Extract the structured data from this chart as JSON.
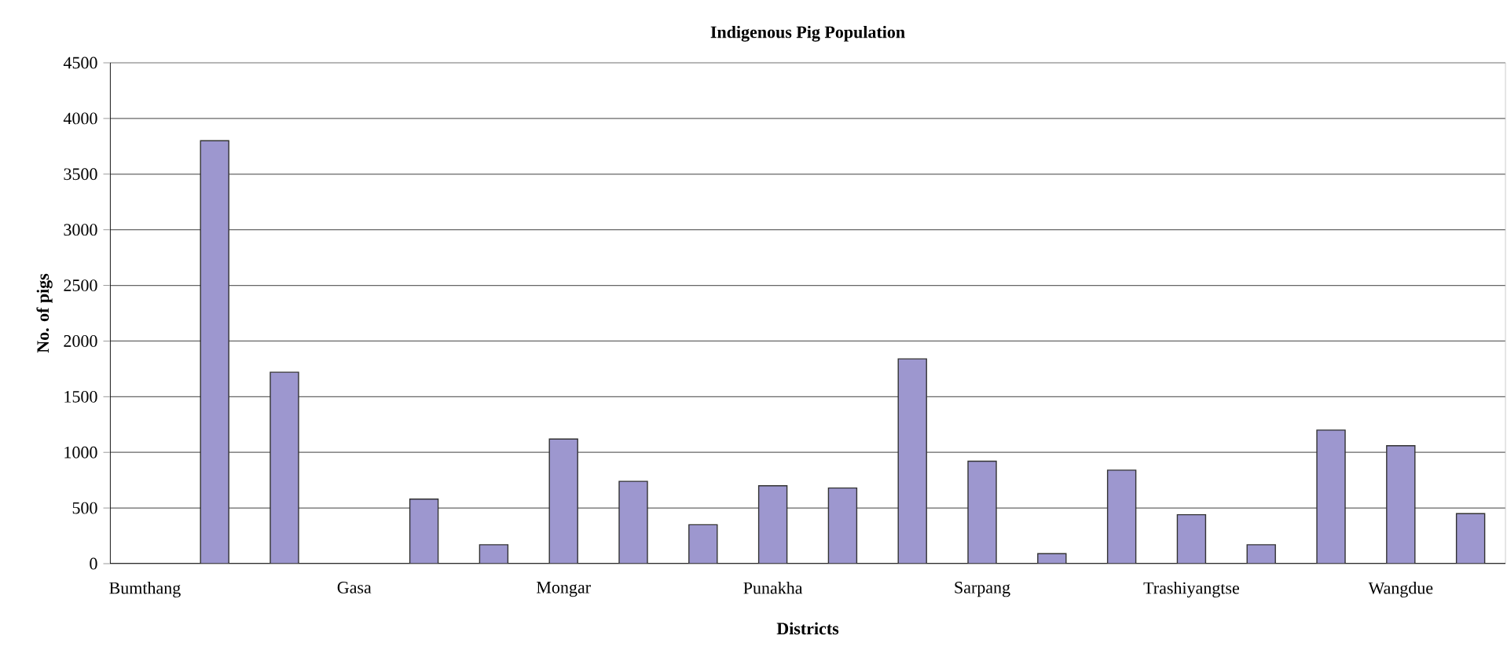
{
  "chart_data": {
    "type": "bar",
    "title": "Indigenous Pig Population",
    "xlabel": "Districts",
    "ylabel": "No. of pigs",
    "categories": [
      "Bumthang",
      null,
      null,
      "Gasa",
      null,
      null,
      "Mongar",
      null,
      null,
      "Punakha",
      null,
      null,
      "Sarpang",
      null,
      null,
      "Trashiyangtse",
      null,
      null,
      "Wangdue",
      null
    ],
    "values": [
      null,
      3800,
      1720,
      null,
      580,
      170,
      1120,
      740,
      350,
      700,
      680,
      1840,
      920,
      90,
      840,
      440,
      170,
      1200,
      1060,
      450
    ],
    "color": "#9d97cf",
    "ylim": [
      0,
      4500
    ],
    "yticks": [
      0,
      500,
      1000,
      1500,
      2000,
      2500,
      3000,
      3500,
      4000,
      4500
    ],
    "grid": "y"
  }
}
